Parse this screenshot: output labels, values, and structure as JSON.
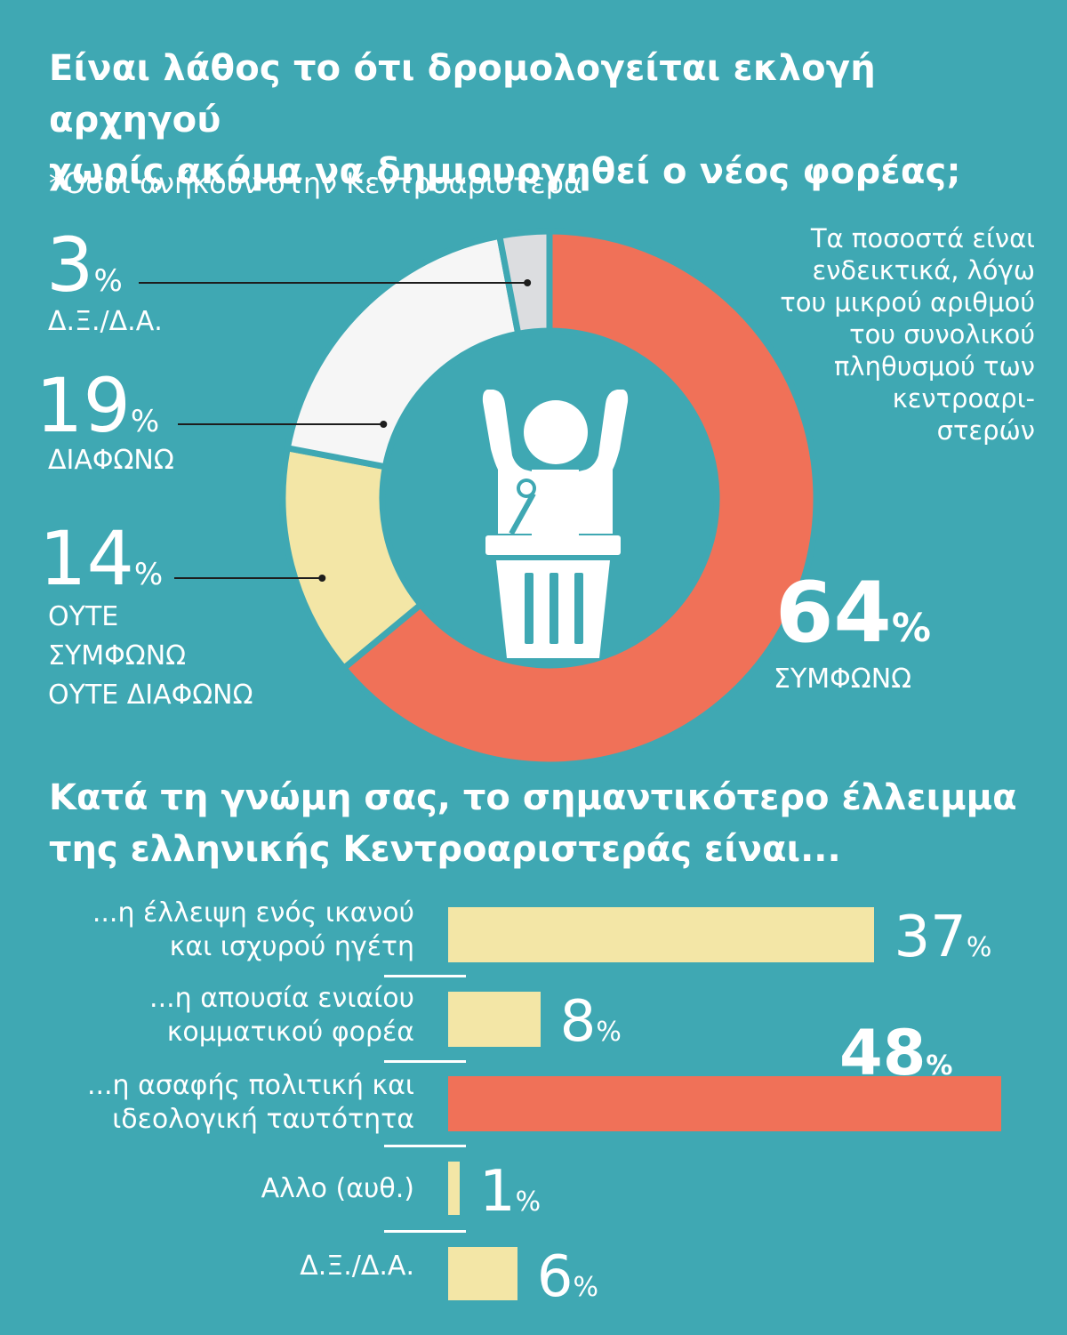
{
  "chart_data": [
    {
      "type": "pie",
      "title": "Είναι λάθος το ότι δρομολογείται εκλογή αρχηγού χωρίς ακόμα να δημιουργηθεί ο νέος φορέας;",
      "subtitle": "*Οσοι ανήκουν στην Κεντροαριστερά",
      "note": "Τα ποσοστά είναι ενδεικτικά, λόγω του μικρού αριθμού του συνολικού πληθυσμού των κεντροαρι-στερών",
      "categories": [
        "ΣΥΜΦΩΝΩ",
        "ΟΥΤΕ ΣΥΜΦΩΝΩ ΟΥΤΕ ΔΙΑΦΩΝΩ",
        "ΔΙΑΦΩΝΩ",
        "Δ.Ξ./Δ.Α."
      ],
      "values": [
        64,
        14,
        19,
        3
      ],
      "colors": [
        "#f07158",
        "#f3e6a6",
        "#f6f6f6",
        "#dcdde0"
      ],
      "unit": "%"
    },
    {
      "type": "bar",
      "title": "Κατά τη γνώμη σας, το σημαντικότερο έλλειμμα της ελληνικής Κεντροαριστεράς είναι...",
      "categories": [
        "...η έλλειψη ενός ικανού και ισχυρού ηγέτη",
        "...η απουσία ενιαίου κομματικού φορέα",
        "...η ασαφής πολιτική και ιδεολογική ταυτότητα",
        "Αλλο (αυθ.)",
        "Δ.Ξ./Δ.Α."
      ],
      "values": [
        37,
        8,
        48,
        1,
        6
      ],
      "colors": [
        "#f3e6a6",
        "#f3e6a6",
        "#f07158",
        "#f3e6a6",
        "#f3e6a6"
      ],
      "unit": "%"
    }
  ],
  "donut_labels": {
    "dk": {
      "value": "3",
      "pct": "%",
      "text": "Δ.Ξ./Δ.Α."
    },
    "disagree": {
      "value": "19",
      "pct": "%",
      "text": "ΔΙΑΦΩΝΩ"
    },
    "neither": {
      "value": "14",
      "pct": "%",
      "text_lines": [
        "ΟΥΤΕ",
        "ΣΥΜΦΩΝΩ",
        "ΟΥΤΕ ΔΙΑΦΩΝΩ"
      ]
    },
    "agree": {
      "value": "64",
      "pct": "%",
      "text": "ΣΥΜΦΩΝΩ"
    }
  },
  "note_lines": [
    "Τα ποσοστά είναι",
    "ενδεικτικά, λόγω",
    "του μικρού αριθμού",
    "του συνολικού",
    "πληθυσμού των",
    "κεντροαρι-",
    "στερών"
  ],
  "title_lines": [
    "Είναι λάθος το ότι δρομολογείται εκλογή αρχηγού",
    "χωρίς ακόμα να δημιουργηθεί ο νέος φορέας;"
  ],
  "title2_lines": [
    "Κατά τη γνώμη σας, το σημαντικότερο έλλειμμα",
    "της ελληνικής Κεντροαριστεράς είναι..."
  ],
  "bar_label_lines": [
    [
      "...η έλλειψη ενός ικανού",
      "και ισχυρού ηγέτη"
    ],
    [
      "...η απουσία ενιαίου",
      "κομματικού φορέα"
    ],
    [
      "...η ασαφής πολιτική και",
      "ιδεολογική ταυτότητα"
    ],
    [
      "Αλλο (αυθ.)"
    ],
    [
      "Δ.Ξ./Δ.Α."
    ]
  ],
  "bar_values_text": [
    "37",
    "8",
    "48",
    "1",
    "6"
  ],
  "pct_sign": "%",
  "icon": "speaker-at-podium-icon"
}
